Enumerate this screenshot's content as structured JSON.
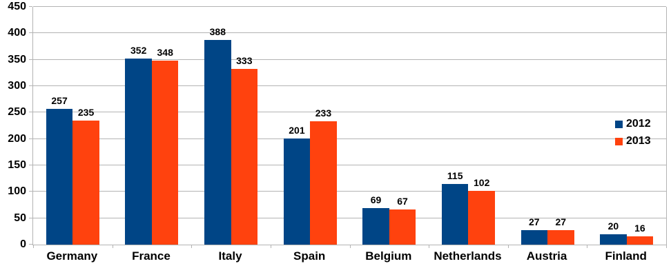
{
  "chart_data": {
    "type": "bar",
    "title": "",
    "xlabel": "",
    "ylabel": "",
    "categories": [
      "Germany",
      "France",
      "Italy",
      "Spain",
      "Belgium",
      "Netherlands",
      "Austria",
      "Finland"
    ],
    "series": [
      {
        "name": "2012",
        "color": "#004586",
        "values": [
          257,
          352,
          388,
          201,
          69,
          115,
          27,
          20
        ]
      },
      {
        "name": "2013",
        "color": "#ff420e",
        "values": [
          235,
          348,
          333,
          233,
          67,
          102,
          27,
          16
        ]
      }
    ],
    "data_labels_shown": true,
    "ylim": [
      0,
      450
    ],
    "yticks": [
      0,
      50,
      100,
      150,
      200,
      250,
      300,
      350,
      400,
      450
    ],
    "grid": true,
    "gridline_color": "#b3b3b3",
    "legend_position": "right",
    "legend_entries": [
      "2012",
      "2013"
    ]
  }
}
